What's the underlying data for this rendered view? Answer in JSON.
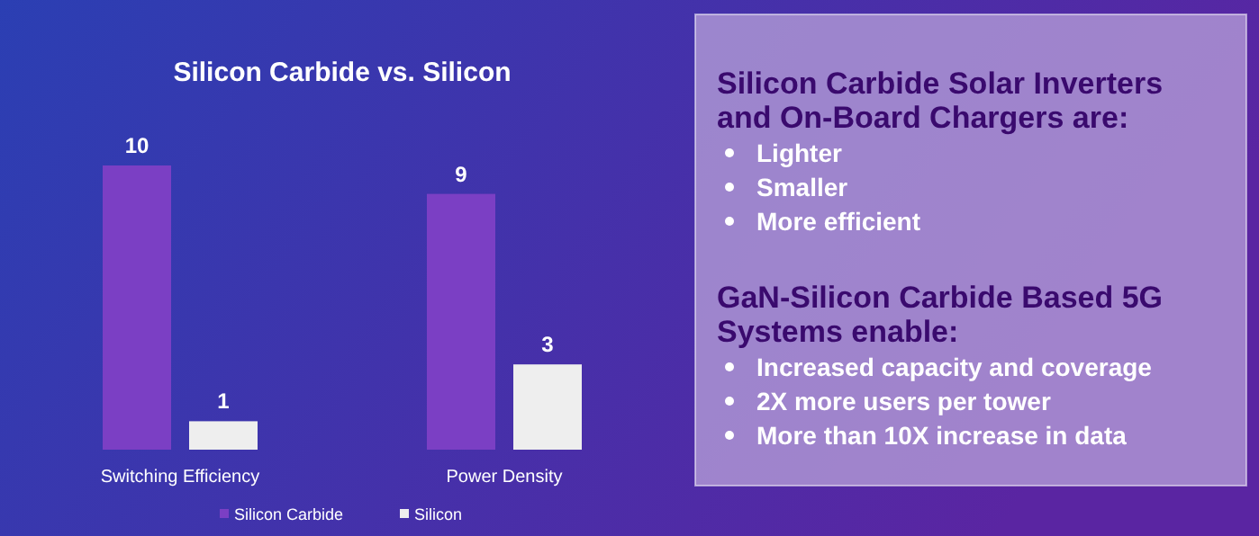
{
  "chart_data": [
    {
      "type": "bar",
      "title": "Silicon Carbide vs. Silicon",
      "categories": [
        "Switching Efficiency",
        "Power Density"
      ],
      "relative": false,
      "data_labels": true,
      "legend": "bottom",
      "series": [
        {
          "name": "Silicon Carbide",
          "color": "#7b3fc4",
          "values": [
            10,
            9
          ]
        },
        {
          "name": "Silicon",
          "color": "#eeeeee",
          "values": [
            1,
            3
          ]
        }
      ]
    },
    {
      "type": "other",
      "title": "Silicon Carbide Solar Inverters and On-Board Chargers are:",
      "annotations": [
        "Lighter",
        "Smaller",
        "More efficient"
      ]
    },
    {
      "type": "other",
      "title": "GaN-Silicon Carbide Based 5G Systems enable:",
      "annotations": [
        "Increased capacity and coverage",
        "2X more users per tower",
        "More than 10X increase in data"
      ]
    }
  ]
}
